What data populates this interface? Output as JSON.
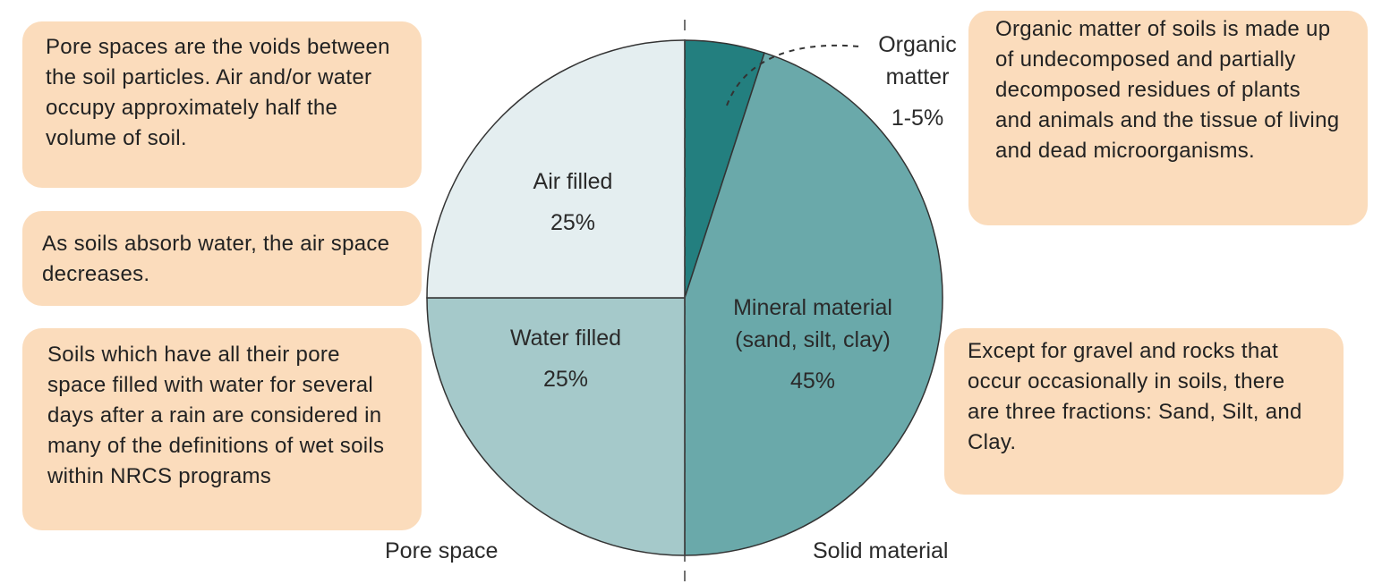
{
  "chart_data": {
    "type": "pie",
    "categories": [
      "Organic matter",
      "Mineral material (sand, silt, clay)",
      "Water filled",
      "Air filled"
    ],
    "values": [
      5,
      45,
      25,
      25
    ],
    "value_labels": [
      "1-5%",
      "45%",
      "25%",
      "25%"
    ],
    "colors": [
      "#237f7f",
      "#6aa9aa",
      "#a5c9ca",
      "#e4eef0"
    ],
    "group_labels": [
      "Pore space",
      "Solid material"
    ],
    "notes": [
      "Pore spaces are the voids between the soil particles. Air and/or water occupy approximately half the volume of soil.",
      "As soils absorb water, the air space decreases.",
      "Soils which have all their pore space filled with water for several days after a rain are considered in many of the definitions of wet soils within NRCS programs",
      "Organic matter of soils is made up of undecomposed and partially decomposed residues of plants and animals and the tissue of living and dead microorganisms.",
      "Except for gravel and rocks that occur occasionally in soils, there are three fractions: Sand, Silt, and Clay."
    ]
  }
}
